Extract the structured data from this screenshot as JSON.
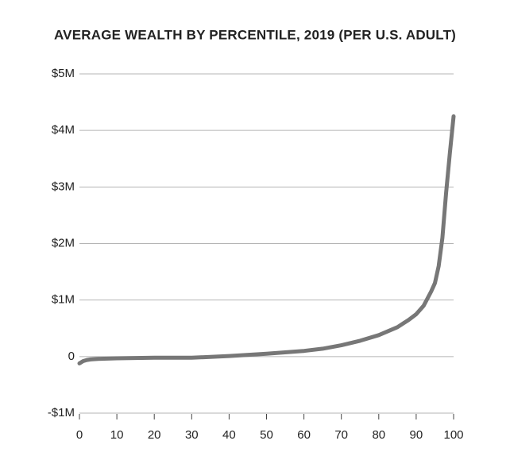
{
  "chart_data": {
    "type": "line",
    "title": "AVERAGE WEALTH BY PERCENTILE, 2019 (PER U.S. ADULT)",
    "x": [
      0,
      1,
      2,
      3,
      5,
      10,
      20,
      30,
      40,
      50,
      60,
      65,
      70,
      75,
      80,
      85,
      88,
      90,
      92,
      94,
      95,
      96,
      97,
      98,
      99,
      100
    ],
    "series": [
      {
        "color": "#777777",
        "values": [
          -120000,
          -80000,
          -60000,
          -50000,
          -40000,
          -30000,
          -20000,
          -20000,
          10000,
          50000,
          100000,
          140000,
          200000,
          280000,
          380000,
          520000,
          650000,
          750000,
          900000,
          1150000,
          1300000,
          1600000,
          2100000,
          2900000,
          3600000,
          4250000
        ]
      }
    ],
    "xlim": [
      0,
      100
    ],
    "xticks": [
      0,
      10,
      20,
      30,
      40,
      50,
      60,
      70,
      80,
      90,
      100
    ],
    "ylim": [
      -1000000,
      5000000
    ],
    "yticks": [
      {
        "value": -1000000,
        "label": "-$1M"
      },
      0,
      {
        "value": 1000000,
        "label": "$1M"
      },
      {
        "value": 2000000,
        "label": "$2M"
      },
      {
        "value": 3000000,
        "label": "$3M"
      },
      {
        "value": 4000000,
        "label": "$4M"
      },
      {
        "value": 5000000,
        "label": "$5M"
      }
    ],
    "grid": true
  }
}
